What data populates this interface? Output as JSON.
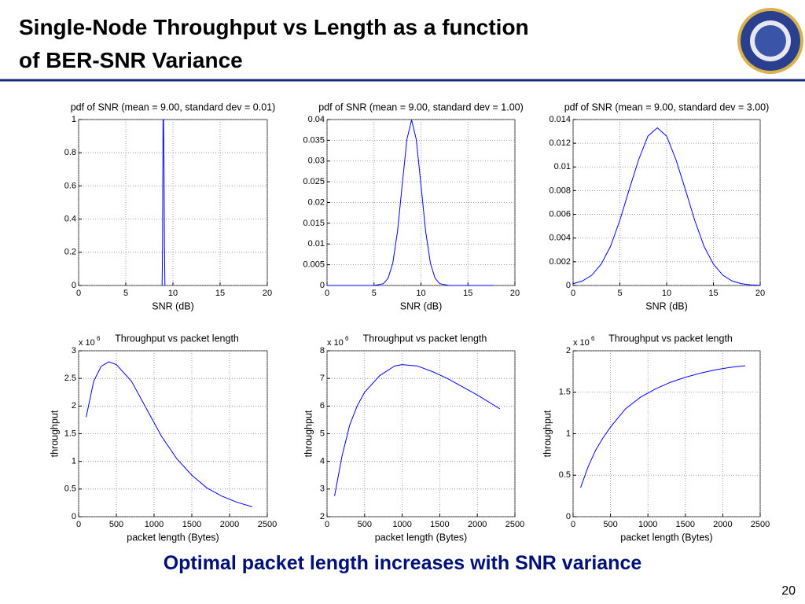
{
  "title": "Single-Node Throughput vs Length as a function of BER-SNR Variance",
  "caption": "Optimal packet length increases with SNR variance",
  "page_number": 20,
  "chart_data": [
    {
      "type": "line",
      "title": "pdf of SNR (mean = 9.00, standard dev = 0.01)",
      "xlabel": "SNR (dB)",
      "color": "#0000ff",
      "x": [
        8.85,
        8.9,
        8.95,
        9.0,
        9.05,
        9.1,
        9.15
      ],
      "values": [
        0,
        0.25,
        1,
        1,
        0.75,
        0.25,
        0
      ],
      "xlim": [
        0,
        20
      ],
      "xticks": [
        0,
        5,
        10,
        15,
        20
      ],
      "ylim": [
        0,
        1
      ],
      "yticks": [
        0,
        0.2,
        0.4,
        0.6,
        0.8,
        1
      ],
      "grid": true
    },
    {
      "type": "line",
      "title": "pdf of SNR (mean = 9.00, standard dev = 1.00)",
      "xlabel": "SNR (dB)",
      "color": "#0000ff",
      "x": [
        0,
        2,
        4,
        5,
        6,
        6.5,
        7,
        7.5,
        8,
        8.5,
        9,
        9.5,
        10,
        10.5,
        11,
        11.5,
        12,
        13,
        14,
        16,
        17.7
      ],
      "values": [
        0,
        0,
        0,
        0,
        0.00044,
        0.00175,
        0.0054,
        0.013,
        0.0242,
        0.0352,
        0.0399,
        0.0352,
        0.0242,
        0.013,
        0.0054,
        0.00175,
        0.00044,
        0,
        0,
        0,
        0
      ],
      "xlim": [
        0,
        20
      ],
      "xticks": [
        0,
        5,
        10,
        15,
        20
      ],
      "ylim": [
        0,
        0.04
      ],
      "yticks": [
        0,
        0.005,
        0.01,
        0.015,
        0.02,
        0.025,
        0.03,
        0.035,
        0.04
      ],
      "grid": true
    },
    {
      "type": "line",
      "title": "pdf of SNR (mean = 9.00, standard dev = 3.00)",
      "xlabel": "SNR (dB)",
      "color": "#0000ff",
      "x": [
        0,
        1,
        2,
        3,
        4,
        5,
        6,
        7,
        8,
        9,
        10,
        11,
        12,
        13,
        14,
        15,
        16,
        17,
        18,
        19,
        20
      ],
      "values": [
        0.000148,
        0.00038,
        0.00087,
        0.0018,
        0.0033,
        0.0055,
        0.0081,
        0.0106,
        0.0126,
        0.0133,
        0.0126,
        0.0106,
        0.0081,
        0.0055,
        0.0033,
        0.0018,
        0.00087,
        0.00038,
        0.000148,
        5.15e-05,
        1.6e-05
      ],
      "xlim": [
        0,
        20
      ],
      "xticks": [
        0,
        5,
        10,
        15,
        20
      ],
      "ylim": [
        0,
        0.014
      ],
      "yticks": [
        0,
        0.002,
        0.004,
        0.006,
        0.008,
        0.01,
        0.012,
        0.014
      ],
      "grid": true
    },
    {
      "type": "line",
      "title": "Throughput vs packet length",
      "xlabel": "packet length (Bytes)",
      "ylabel": "throughput",
      "y_multiplier": "x 10",
      "y_exponent": "6",
      "color": "#0000ff",
      "x": [
        100,
        200,
        300,
        400,
        500,
        700,
        900,
        1100,
        1300,
        1500,
        1700,
        1900,
        2100,
        2300
      ],
      "values": [
        1.8,
        2.45,
        2.72,
        2.8,
        2.75,
        2.45,
        1.95,
        1.45,
        1.05,
        0.75,
        0.52,
        0.37,
        0.26,
        0.18
      ],
      "xlim": [
        0,
        2500
      ],
      "xticks": [
        0,
        500,
        1000,
        1500,
        2000,
        2500
      ],
      "ylim": [
        0,
        3
      ],
      "yticks": [
        0,
        0.5,
        1,
        1.5,
        2,
        2.5,
        3
      ],
      "grid": true
    },
    {
      "type": "line",
      "title": "Throughput vs packet length",
      "xlabel": "packet length (Bytes)",
      "ylabel": "throughput",
      "y_multiplier": "x 10",
      "y_exponent": "6",
      "color": "#0000ff",
      "x": [
        100,
        200,
        300,
        400,
        500,
        700,
        900,
        1000,
        1200,
        1400,
        1600,
        1800,
        2000,
        2300
      ],
      "values": [
        2.75,
        4.2,
        5.3,
        6.0,
        6.5,
        7.1,
        7.45,
        7.5,
        7.45,
        7.25,
        7.0,
        6.7,
        6.4,
        5.9
      ],
      "xlim": [
        0,
        2500
      ],
      "xticks": [
        0,
        500,
        1000,
        1500,
        2000,
        2500
      ],
      "ylim": [
        2,
        8
      ],
      "yticks": [
        2,
        3,
        4,
        5,
        6,
        7,
        8
      ],
      "grid": true
    },
    {
      "type": "line",
      "title": "Throughput vs packet length",
      "xlabel": "packet length (Bytes)",
      "ylabel": "throughput",
      "y_multiplier": "x 10",
      "y_exponent": "6",
      "color": "#0000ff",
      "x": [
        100,
        200,
        300,
        400,
        500,
        700,
        900,
        1100,
        1300,
        1500,
        1700,
        1900,
        2100,
        2300
      ],
      "values": [
        0.35,
        0.6,
        0.8,
        0.95,
        1.08,
        1.3,
        1.44,
        1.54,
        1.62,
        1.68,
        1.73,
        1.77,
        1.8,
        1.82
      ],
      "xlim": [
        0,
        2500
      ],
      "xticks": [
        0,
        500,
        1000,
        1500,
        2000,
        2500
      ],
      "ylim": [
        0,
        2
      ],
      "yticks": [
        0,
        0.5,
        1,
        1.5,
        2
      ],
      "grid": true
    }
  ]
}
